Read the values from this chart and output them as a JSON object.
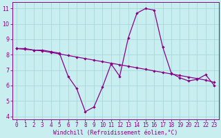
{
  "xlabel": "Windchill (Refroidissement éolien,°C)",
  "background_color": "#c8eef0",
  "grid_color": "#a8d8da",
  "line_color": "#880088",
  "spine_color": "#880088",
  "xlim": [
    -0.5,
    23.5
  ],
  "ylim": [
    3.8,
    11.4
  ],
  "yticks": [
    4,
    5,
    6,
    7,
    8,
    9,
    10,
    11
  ],
  "xticks": [
    0,
    1,
    2,
    3,
    4,
    5,
    6,
    7,
    8,
    9,
    10,
    11,
    12,
    13,
    14,
    15,
    16,
    17,
    18,
    19,
    20,
    21,
    22,
    23
  ],
  "series1_x": [
    0,
    1,
    2,
    3,
    4,
    5,
    6,
    7,
    8,
    9,
    10,
    11,
    12,
    13,
    14,
    15,
    16,
    17,
    18,
    19,
    20,
    21,
    22,
    23
  ],
  "series1_y": [
    8.4,
    8.4,
    8.3,
    8.3,
    8.2,
    8.1,
    6.6,
    5.8,
    4.3,
    4.6,
    5.9,
    7.4,
    6.6,
    9.1,
    10.7,
    11.0,
    10.9,
    8.5,
    6.8,
    6.5,
    6.3,
    6.4,
    6.7,
    6.0
  ],
  "series2_x": [
    0,
    1,
    2,
    3,
    4,
    5,
    6,
    7,
    8,
    9,
    10,
    11,
    12,
    13,
    14,
    15,
    16,
    17,
    18,
    19,
    20,
    21,
    22,
    23
  ],
  "series2_y": [
    8.4,
    8.35,
    8.3,
    8.25,
    8.15,
    8.05,
    7.95,
    7.85,
    7.75,
    7.65,
    7.55,
    7.45,
    7.35,
    7.25,
    7.15,
    7.05,
    6.95,
    6.85,
    6.75,
    6.65,
    6.55,
    6.45,
    6.35,
    6.2
  ],
  "tick_fontsize": 5.5,
  "xlabel_fontsize": 5.8,
  "marker_size": 2.2,
  "line_width": 0.9
}
